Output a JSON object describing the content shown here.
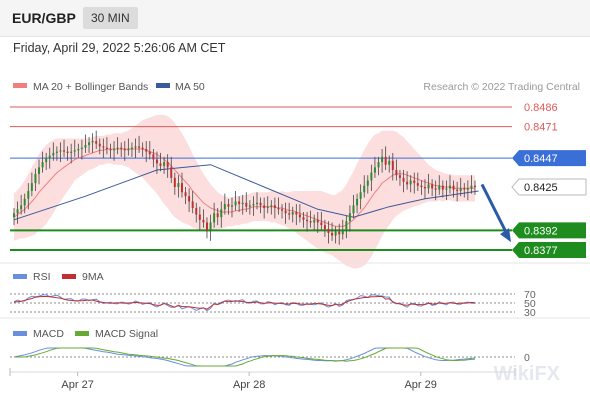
{
  "header": {
    "pair": "EUR/GBP",
    "timeframe": "30 MIN"
  },
  "datetime": "Friday, April 29, 2022 5:26:06 AM CET",
  "legend": {
    "ma20": "MA 20 + Bollinger Bands",
    "ma50": "MA 50",
    "credit": "Research © 2022 Trading Central"
  },
  "rsi_legend": {
    "rsi": "RSI",
    "ma": "9MA"
  },
  "macd_legend": {
    "macd": "MACD",
    "signal": "MACD Signal"
  },
  "watermark": "WikiFX",
  "colors": {
    "resistance": "#e05a5a",
    "pivot": "#3a6fd8",
    "support": "#1e8c1e",
    "ma20": "#f08080",
    "ma50": "#3a5a9a",
    "band": "#fbd3d3",
    "bull": "#2e8b2e",
    "bear": "#c03030",
    "arrow": "#2a5aa8",
    "rsi": "#6a8ee0",
    "rsi_ma": "#c03030",
    "macd": "#6a8ee0",
    "signal": "#66aa33"
  },
  "chart_data": {
    "type": "candlestick",
    "ylim": [
      0.836,
      0.85
    ],
    "current_price": "0.8425",
    "levels": [
      {
        "label": "0.8486",
        "value": 0.8486,
        "kind": "resistance"
      },
      {
        "label": "0.8471",
        "value": 0.8471,
        "kind": "resistance"
      },
      {
        "label": "0.8447",
        "value": 0.8447,
        "kind": "pivot"
      },
      {
        "label": "0.8392",
        "value": 0.8392,
        "kind": "support"
      },
      {
        "label": "0.8377",
        "value": 0.8377,
        "kind": "support"
      }
    ],
    "x_ticks": [
      "Apr 27",
      "Apr 28",
      "Apr 29"
    ],
    "x_tick_index": [
      22,
      70,
      118
    ],
    "close": [
      0.8405,
      0.8408,
      0.8411,
      0.8416,
      0.8422,
      0.8428,
      0.8435,
      0.844,
      0.8444,
      0.8447,
      0.8449,
      0.8451,
      0.8452,
      0.8453,
      0.8452,
      0.8451,
      0.8452,
      0.8453,
      0.8454,
      0.8455,
      0.8457,
      0.8459,
      0.846,
      0.8458,
      0.8456,
      0.8455,
      0.8454,
      0.8453,
      0.8454,
      0.8455,
      0.8454,
      0.8453,
      0.8454,
      0.8455,
      0.8456,
      0.8455,
      0.8454,
      0.8452,
      0.845,
      0.8446,
      0.8443,
      0.8441,
      0.8444,
      0.844,
      0.8432,
      0.8425,
      0.8428,
      0.8421,
      0.8418,
      0.8414,
      0.8409,
      0.8404,
      0.84,
      0.8398,
      0.8392,
      0.8398,
      0.8405,
      0.8402,
      0.8408,
      0.8412,
      0.841,
      0.8411,
      0.8414,
      0.8412,
      0.8413,
      0.841,
      0.8411,
      0.8412,
      0.8413,
      0.8411,
      0.8409,
      0.841,
      0.8411,
      0.8409,
      0.8408,
      0.8407,
      0.8405,
      0.8404,
      0.8406,
      0.8404,
      0.8402,
      0.84,
      0.8399,
      0.8398,
      0.84,
      0.8398,
      0.8396,
      0.8393,
      0.839,
      0.8388,
      0.8391,
      0.8389,
      0.8392,
      0.8399,
      0.8405,
      0.8411,
      0.8416,
      0.8421,
      0.8426,
      0.843,
      0.8436,
      0.844,
      0.8444,
      0.8448,
      0.8442,
      0.8445,
      0.8438,
      0.8434,
      0.8432,
      0.8429,
      0.8427,
      0.843,
      0.8428,
      0.8426,
      0.8425,
      0.8424,
      0.8427,
      0.8424,
      0.8423,
      0.8426,
      0.8423,
      0.8424,
      0.8426,
      0.8423,
      0.8422,
      0.8424,
      0.8423,
      0.8424,
      0.8426,
      0.8425
    ],
    "ma20": [
      0.8402,
      0.8404,
      0.8406,
      0.8408,
      0.8411,
      0.8414,
      0.8417,
      0.8421,
      0.8424,
      0.8427,
      0.843,
      0.8433,
      0.8436,
      0.8438,
      0.844,
      0.8442,
      0.8444,
      0.8446,
      0.8447,
      0.8448,
      0.8449,
      0.845,
      0.8451,
      0.8452,
      0.8453,
      0.8453,
      0.8454,
      0.8454,
      0.8454,
      0.8454,
      0.8454,
      0.8454,
      0.8454,
      0.8454,
      0.8454,
      0.8454,
      0.8454,
      0.8453,
      0.8452,
      0.8451,
      0.845,
      0.8448,
      0.8446,
      0.8444,
      0.8441,
      0.8438,
      0.8435,
      0.8432,
      0.8429,
      0.8426,
      0.8422,
      0.8419,
      0.8416,
      0.8413,
      0.8411,
      0.8409,
      0.8408,
      0.8407,
      0.8406,
      0.8406,
      0.8406,
      0.8406,
      0.8407,
      0.8407,
      0.8408,
      0.8408,
      0.8409,
      0.841,
      0.841,
      0.841,
      0.841,
      0.841,
      0.841,
      0.841,
      0.8409,
      0.8409,
      0.8408,
      0.8407,
      0.8407,
      0.8406,
      0.8405,
      0.8404,
      0.8403,
      0.8402,
      0.8401,
      0.84,
      0.8399,
      0.8398,
      0.8397,
      0.8396,
      0.8395,
      0.8395,
      0.8395,
      0.8396,
      0.8398,
      0.84,
      0.8403,
      0.8406,
      0.8409,
      0.8413,
      0.8417,
      0.8421,
      0.8424,
      0.8428,
      0.843,
      0.8432,
      0.8434,
      0.8435,
      0.8435,
      0.8435,
      0.8434,
      0.8433,
      0.8432,
      0.8431,
      0.843,
      0.8429,
      0.8428,
      0.8427,
      0.8426,
      0.8426,
      0.8425,
      0.8425,
      0.8425,
      0.8424,
      0.8424,
      0.8424,
      0.8424,
      0.8424,
      0.8424,
      0.8424
    ],
    "band_width": [
      0.0018,
      0.0019,
      0.002,
      0.0022,
      0.0024,
      0.0026,
      0.0028,
      0.0029,
      0.003,
      0.003,
      0.0029,
      0.0028,
      0.0026,
      0.0024,
      0.0022,
      0.002,
      0.0018,
      0.0016,
      0.0015,
      0.0014,
      0.0013,
      0.0012,
      0.0012,
      0.0012,
      0.0011,
      0.0011,
      0.0011,
      0.0011,
      0.0012,
      0.0012,
      0.0012,
      0.0013,
      0.0014,
      0.0016,
      0.0018,
      0.002,
      0.0022,
      0.0024,
      0.0026,
      0.0028,
      0.003,
      0.0032,
      0.0034,
      0.0035,
      0.0036,
      0.0036,
      0.0035,
      0.0034,
      0.0032,
      0.003,
      0.0028,
      0.0026,
      0.0024,
      0.0022,
      0.002,
      0.0018,
      0.0016,
      0.0014,
      0.0013,
      0.0012,
      0.0011,
      0.0011,
      0.0011,
      0.0011,
      0.0011,
      0.0011,
      0.0011,
      0.0011,
      0.0011,
      0.0011,
      0.0011,
      0.0011,
      0.0012,
      0.0012,
      0.0012,
      0.0013,
      0.0013,
      0.0014,
      0.0015,
      0.0016,
      0.0017,
      0.0018,
      0.0019,
      0.002,
      0.0021,
      0.0022,
      0.0023,
      0.0023,
      0.0023,
      0.0023,
      0.0024,
      0.0026,
      0.0028,
      0.0031,
      0.0034,
      0.0037,
      0.004,
      0.0042,
      0.0044,
      0.0045,
      0.0045,
      0.0044,
      0.0042,
      0.004,
      0.0038,
      0.0036,
      0.0034,
      0.0032,
      0.003,
      0.0028,
      0.0026,
      0.0024,
      0.0022,
      0.002,
      0.0018,
      0.0016,
      0.0014,
      0.0013,
      0.0012,
      0.0011,
      0.0011,
      0.001,
      0.001,
      0.001,
      0.001,
      0.001,
      0.001,
      0.001,
      0.001,
      0.001
    ],
    "ma50_points": [
      [
        0,
        0.84
      ],
      [
        20,
        0.8418
      ],
      [
        40,
        0.8438
      ],
      [
        55,
        0.8442
      ],
      [
        70,
        0.8425
      ],
      [
        85,
        0.8408
      ],
      [
        95,
        0.8402
      ],
      [
        105,
        0.841
      ],
      [
        115,
        0.8416
      ],
      [
        125,
        0.842
      ],
      [
        130,
        0.8422
      ]
    ],
    "forecast": {
      "from": 0.8427,
      "to": 0.8383
    },
    "rsi": {
      "levels": [
        70,
        50,
        30
      ],
      "level_labels": [
        "70",
        "50",
        "30"
      ]
    },
    "macd": {
      "zero_label": "0"
    }
  }
}
